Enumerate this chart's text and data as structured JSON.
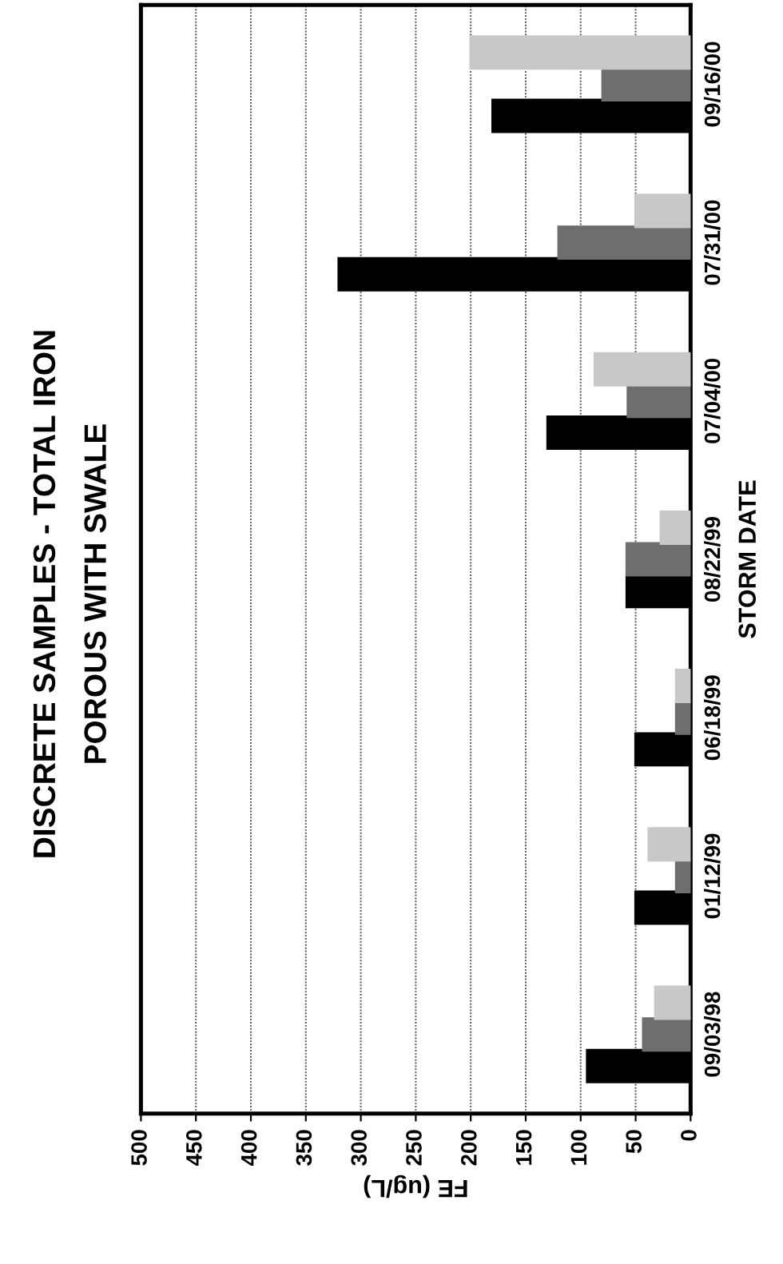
{
  "chart_data": {
    "type": "bar",
    "orientation": "horizontal",
    "title": "DISCRETE SAMPLES - TOTAL IRON",
    "subtitle": "POROUS WITH SWALE",
    "xlabel": "FE (ug/L)",
    "ylabel": "STORM DATE",
    "categories": [
      "09/16/00",
      "07/31/00",
      "07/04/00",
      "08/22/99",
      "06/18/99",
      "01/12/99",
      "09/03/98"
    ],
    "series": [
      {
        "color": "#000000",
        "values": [
          180,
          320,
          130,
          58,
          50,
          50,
          94
        ]
      },
      {
        "color": "#6e6e6e",
        "values": [
          80,
          120,
          57,
          58,
          13,
          13,
          43
        ]
      },
      {
        "color": "#c8c8c8",
        "values": [
          200,
          50,
          87,
          27,
          13,
          38,
          32
        ]
      }
    ],
    "xlim": [
      500,
      0
    ],
    "xticks": [
      0,
      50,
      100,
      150,
      200,
      250,
      300,
      350,
      400,
      450,
      500
    ],
    "grid": "x",
    "legend": false
  }
}
